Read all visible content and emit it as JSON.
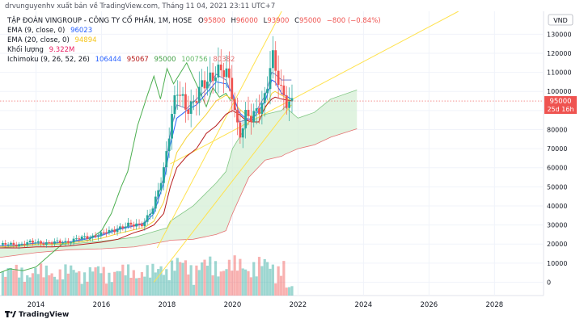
{
  "header": {
    "publisher": "drvunguyenhv xuất bản về TradingView.com, Tháng 11 04, 2021 23:11 UTC+7"
  },
  "symbol": {
    "name": "TẬP ĐOÀN VINGROUP - CÔNG TY CỔ PHẦN, 1M, HOSE",
    "o_label": "O",
    "o": "95800",
    "h_label": "H",
    "h": "96000",
    "l_label": "L",
    "l": "93900",
    "c_label": "C",
    "c": "95000",
    "change": "−800 (−0.84%)"
  },
  "indicators": {
    "ema9": {
      "label": "EMA (9, close, 0)",
      "value": "96023",
      "color": "#2962ff"
    },
    "ema20": {
      "label": "EMA (20, close, 0)",
      "value": "94894",
      "color": "#f5d33a"
    },
    "volume": {
      "label": "Khối lượng",
      "value": "9.322M",
      "color": "#e91e63"
    },
    "ichimoku": {
      "label": "Ichimoku (9, 26, 52, 26)",
      "values": [
        {
          "text": "106444",
          "color": "#2962ff"
        },
        {
          "text": "95067",
          "color": "#b71c1c"
        },
        {
          "text": "95000",
          "color": "#43a047"
        },
        {
          "text": "100756",
          "color": "#66bb6a"
        },
        {
          "text": "80382",
          "color": "#e57373"
        }
      ]
    }
  },
  "price_axis": {
    "currency": "VND",
    "last_price": "95000",
    "countdown": "25d 16h",
    "last_color": "#ef5350"
  },
  "footer": {
    "brand": "TradingView"
  },
  "colors": {
    "up": "#26a69a",
    "down": "#ef5350",
    "cloud": "#d6efd6",
    "lagging": "#4caf50",
    "base": "#b71c1c",
    "trend": "#ffe24d"
  },
  "chart_data": {
    "type": "candlestick",
    "x_axis": {
      "ticks": [
        "2014",
        "2016",
        "2018",
        "2020",
        "2022",
        "2024",
        "2026",
        "2028"
      ],
      "range": [
        2012.9,
        2029.4
      ]
    },
    "y_axis": {
      "ticks": [
        0,
        10000,
        20000,
        30000,
        40000,
        50000,
        60000,
        70000,
        80000,
        90000,
        100000,
        110000,
        120000,
        130000
      ],
      "range": [
        -7000,
        142000
      ]
    },
    "volume_ylim": [
      0,
      120
    ],
    "anchors": {
      "t": [
        2012.9,
        2013.5,
        2014.0,
        2014.5,
        2015.0,
        2015.5,
        2016.0,
        2016.5,
        2017.0,
        2017.3,
        2017.6,
        2017.9,
        2018.1,
        2018.3,
        2018.6,
        2018.9,
        2019.2,
        2019.5,
        2019.8,
        2020.0,
        2020.2,
        2020.4,
        2020.6,
        2020.8,
        2021.0,
        2021.2,
        2021.3,
        2021.5,
        2021.8
      ],
      "close": [
        19500,
        20000,
        21000,
        20500,
        21500,
        23500,
        25000,
        28500,
        30000,
        31500,
        39000,
        60000,
        83000,
        99000,
        92000,
        97000,
        104000,
        113000,
        108000,
        98000,
        78000,
        87000,
        84000,
        92000,
        99000,
        118000,
        110000,
        99000,
        95000
      ],
      "ema9": [
        19000,
        19500,
        20500,
        20500,
        21000,
        22500,
        24500,
        27500,
        29500,
        30500,
        36000,
        52000,
        72000,
        86000,
        90000,
        93000,
        99000,
        105000,
        104000,
        99000,
        89000,
        86000,
        85000,
        90000,
        95000,
        106000,
        105000,
        99000,
        96000
      ],
      "ema20": [
        18500,
        19000,
        20000,
        20000,
        20500,
        21500,
        23000,
        25500,
        27500,
        28500,
        32000,
        42000,
        56000,
        68000,
        76000,
        82000,
        88000,
        95000,
        98000,
        96000,
        91000,
        88000,
        87000,
        88000,
        91000,
        99000,
        100000,
        98000,
        95000
      ],
      "base": [
        18000,
        18000,
        18500,
        18500,
        19000,
        20000,
        21000,
        22500,
        26000,
        27500,
        30000,
        36000,
        50000,
        60000,
        66000,
        70000,
        78000,
        82000,
        88000,
        90000,
        88000,
        85000,
        84000,
        84000,
        92000,
        96000,
        97000,
        96000,
        95000
      ],
      "conv": [
        19000,
        19500,
        20500,
        20500,
        21000,
        23000,
        25000,
        28000,
        30000,
        31000,
        38000,
        55000,
        78000,
        93000,
        91000,
        96000,
        101000,
        109000,
        106000,
        98000,
        84000,
        85000,
        86000,
        92000,
        98000,
        110000,
        109000,
        106000,
        106000
      ]
    },
    "ichimoku_cloud": {
      "t": [
        2012.9,
        2014.0,
        2015.0,
        2016.0,
        2017.0,
        2017.5,
        2018.0,
        2018.1,
        2018.8,
        2019.5,
        2019.8,
        2020.0,
        2020.5,
        2021.0,
        2021.5,
        2021.6,
        2022.0,
        2022.5,
        2023.0,
        2023.8
      ],
      "span_a": [
        18000,
        19500,
        20000,
        21500,
        23500,
        26000,
        28500,
        32000,
        40000,
        52000,
        58000,
        70000,
        84000,
        88000,
        90000,
        92000,
        86000,
        89000,
        96000,
        100800
      ],
      "span_b": [
        13000,
        15500,
        17000,
        17500,
        18500,
        20000,
        21500,
        22000,
        22500,
        25000,
        27000,
        36000,
        55000,
        64000,
        66000,
        67000,
        70000,
        72000,
        76000,
        80400
      ]
    },
    "lagging_span": {
      "t": [
        2012.9,
        2013.2,
        2013.6,
        2014.0,
        2014.4,
        2014.8,
        2015.2,
        2015.6,
        2016.0,
        2016.3,
        2016.6,
        2016.8,
        2017.1,
        2017.4,
        2017.6,
        2017.8,
        2018.0,
        2018.2,
        2018.6,
        2019.0,
        2019.2,
        2019.4,
        2019.6,
        2019.8,
        2019.95
      ],
      "v": [
        5000,
        7000,
        6000,
        8000,
        14000,
        20000,
        21000,
        22000,
        27000,
        36000,
        50000,
        58000,
        82000,
        98000,
        108000,
        96000,
        112000,
        104000,
        115000,
        100000,
        92000,
        102000,
        97000,
        99000,
        95000
      ]
    },
    "trendlines": [
      {
        "t": [
          2017.7,
          2021.5
        ],
        "v": [
          18000,
          142000
        ]
      },
      {
        "t": [
          2018.1,
          2026.9
        ],
        "v": [
          62000,
          142000
        ]
      },
      {
        "t": [
          2017.6,
          2021.8
        ],
        "v": [
          0,
          93000
        ]
      }
    ],
    "last_close": 95000
  }
}
